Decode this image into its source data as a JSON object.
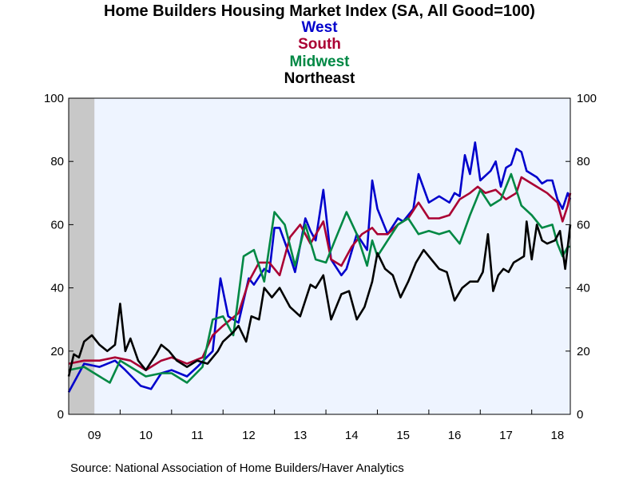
{
  "chart_data": {
    "type": "line",
    "title": "Home Builders Housing Market Index (SA, All Good=100)",
    "source": "Source:  National Association of Home Builders/Haver Analytics",
    "ylim": [
      0,
      100
    ],
    "y_ticks": [
      "0",
      "20",
      "40",
      "60",
      "80",
      "100"
    ],
    "x_range": [
      2009.0,
      2018.75
    ],
    "x_ticks": [
      {
        "label": "09",
        "x": 2009.5
      },
      {
        "label": "10",
        "x": 2010.5
      },
      {
        "label": "11",
        "x": 2011.5
      },
      {
        "label": "12",
        "x": 2012.5
      },
      {
        "label": "13",
        "x": 2013.5
      },
      {
        "label": "14",
        "x": 2014.5
      },
      {
        "label": "15",
        "x": 2015.5
      },
      {
        "label": "16",
        "x": 2016.5
      },
      {
        "label": "17",
        "x": 2017.5
      },
      {
        "label": "18",
        "x": 2018.5
      }
    ],
    "recession_shading": [
      2009.0,
      2009.5
    ],
    "grid": false,
    "legend_position": "top-center",
    "series": [
      {
        "name": "West",
        "color": "#0000cc",
        "points": [
          [
            2009.0,
            7
          ],
          [
            2009.3,
            16
          ],
          [
            2009.6,
            15
          ],
          [
            2009.9,
            17
          ],
          [
            2010.1,
            14
          ],
          [
            2010.4,
            9
          ],
          [
            2010.6,
            8
          ],
          [
            2010.8,
            13
          ],
          [
            2011.0,
            14
          ],
          [
            2011.3,
            12
          ],
          [
            2011.5,
            15
          ],
          [
            2011.8,
            20
          ],
          [
            2011.95,
            43
          ],
          [
            2012.1,
            31
          ],
          [
            2012.3,
            29
          ],
          [
            2012.5,
            43
          ],
          [
            2012.6,
            41
          ],
          [
            2012.8,
            46
          ],
          [
            2012.9,
            45
          ],
          [
            2013.0,
            59
          ],
          [
            2013.1,
            59
          ],
          [
            2013.3,
            50
          ],
          [
            2013.4,
            45
          ],
          [
            2013.6,
            62
          ],
          [
            2013.7,
            58
          ],
          [
            2013.8,
            55
          ],
          [
            2013.95,
            71
          ],
          [
            2014.1,
            49
          ],
          [
            2014.3,
            44
          ],
          [
            2014.4,
            46
          ],
          [
            2014.6,
            57
          ],
          [
            2014.8,
            52
          ],
          [
            2014.9,
            74
          ],
          [
            2015.0,
            65
          ],
          [
            2015.2,
            57
          ],
          [
            2015.4,
            62
          ],
          [
            2015.5,
            61
          ],
          [
            2015.7,
            65
          ],
          [
            2015.8,
            76
          ],
          [
            2016.0,
            67
          ],
          [
            2016.2,
            69
          ],
          [
            2016.4,
            67
          ],
          [
            2016.5,
            70
          ],
          [
            2016.6,
            69
          ],
          [
            2016.7,
            82
          ],
          [
            2016.8,
            76
          ],
          [
            2016.9,
            86
          ],
          [
            2017.0,
            74
          ],
          [
            2017.2,
            77
          ],
          [
            2017.3,
            80
          ],
          [
            2017.4,
            72
          ],
          [
            2017.5,
            78
          ],
          [
            2017.6,
            79
          ],
          [
            2017.7,
            84
          ],
          [
            2017.8,
            83
          ],
          [
            2017.9,
            77
          ],
          [
            2018.1,
            75
          ],
          [
            2018.2,
            73
          ],
          [
            2018.3,
            74
          ],
          [
            2018.4,
            74
          ],
          [
            2018.5,
            68
          ],
          [
            2018.6,
            65
          ],
          [
            2018.7,
            70
          ],
          [
            2018.75,
            68
          ]
        ]
      },
      {
        "name": "South",
        "color": "#aa0033",
        "points": [
          [
            2009.0,
            16
          ],
          [
            2009.3,
            17
          ],
          [
            2009.6,
            17
          ],
          [
            2009.9,
            18
          ],
          [
            2010.2,
            17
          ],
          [
            2010.5,
            14
          ],
          [
            2010.8,
            17
          ],
          [
            2011.0,
            18
          ],
          [
            2011.3,
            16
          ],
          [
            2011.6,
            18
          ],
          [
            2011.8,
            25
          ],
          [
            2012.0,
            28
          ],
          [
            2012.3,
            32
          ],
          [
            2012.5,
            42
          ],
          [
            2012.7,
            48
          ],
          [
            2012.9,
            48
          ],
          [
            2013.1,
            44
          ],
          [
            2013.3,
            56
          ],
          [
            2013.5,
            60
          ],
          [
            2013.7,
            54
          ],
          [
            2013.95,
            61
          ],
          [
            2014.1,
            49
          ],
          [
            2014.3,
            47
          ],
          [
            2014.5,
            53
          ],
          [
            2014.7,
            57
          ],
          [
            2014.9,
            59
          ],
          [
            2015.0,
            57
          ],
          [
            2015.2,
            57
          ],
          [
            2015.4,
            60
          ],
          [
            2015.6,
            62
          ],
          [
            2015.8,
            67
          ],
          [
            2016.0,
            62
          ],
          [
            2016.2,
            62
          ],
          [
            2016.4,
            63
          ],
          [
            2016.6,
            68
          ],
          [
            2016.8,
            70
          ],
          [
            2016.95,
            72
          ],
          [
            2017.1,
            70
          ],
          [
            2017.3,
            71
          ],
          [
            2017.5,
            68
          ],
          [
            2017.7,
            70
          ],
          [
            2017.8,
            75
          ],
          [
            2017.9,
            74
          ],
          [
            2018.1,
            72
          ],
          [
            2018.3,
            70
          ],
          [
            2018.5,
            67
          ],
          [
            2018.6,
            61
          ],
          [
            2018.7,
            66
          ],
          [
            2018.75,
            70
          ]
        ]
      },
      {
        "name": "Midwest",
        "color": "#008844",
        "points": [
          [
            2009.0,
            14
          ],
          [
            2009.3,
            15
          ],
          [
            2009.6,
            12
          ],
          [
            2009.8,
            10
          ],
          [
            2010.0,
            17
          ],
          [
            2010.2,
            15
          ],
          [
            2010.5,
            12
          ],
          [
            2010.8,
            13
          ],
          [
            2011.0,
            13
          ],
          [
            2011.3,
            10
          ],
          [
            2011.6,
            15
          ],
          [
            2011.8,
            30
          ],
          [
            2012.0,
            31
          ],
          [
            2012.2,
            25
          ],
          [
            2012.4,
            50
          ],
          [
            2012.6,
            52
          ],
          [
            2012.8,
            42
          ],
          [
            2013.0,
            64
          ],
          [
            2013.2,
            60
          ],
          [
            2013.4,
            47
          ],
          [
            2013.6,
            60
          ],
          [
            2013.8,
            49
          ],
          [
            2014.0,
            48
          ],
          [
            2014.2,
            56
          ],
          [
            2014.4,
            64
          ],
          [
            2014.6,
            57
          ],
          [
            2014.8,
            47
          ],
          [
            2014.9,
            55
          ],
          [
            2015.0,
            50
          ],
          [
            2015.2,
            55
          ],
          [
            2015.4,
            60
          ],
          [
            2015.6,
            62
          ],
          [
            2015.8,
            57
          ],
          [
            2016.0,
            58
          ],
          [
            2016.2,
            57
          ],
          [
            2016.4,
            58
          ],
          [
            2016.6,
            54
          ],
          [
            2016.8,
            63
          ],
          [
            2017.0,
            71
          ],
          [
            2017.2,
            66
          ],
          [
            2017.4,
            68
          ],
          [
            2017.6,
            76
          ],
          [
            2017.8,
            66
          ],
          [
            2018.0,
            63
          ],
          [
            2018.2,
            59
          ],
          [
            2018.4,
            60
          ],
          [
            2018.5,
            54
          ],
          [
            2018.6,
            50
          ],
          [
            2018.7,
            53
          ],
          [
            2018.75,
            53
          ]
        ]
      },
      {
        "name": "Northeast",
        "color": "#000000",
        "points": [
          [
            2009.0,
            12
          ],
          [
            2009.1,
            19
          ],
          [
            2009.2,
            18
          ],
          [
            2009.3,
            23
          ],
          [
            2009.45,
            25
          ],
          [
            2009.6,
            22
          ],
          [
            2009.75,
            20
          ],
          [
            2009.9,
            22
          ],
          [
            2010.0,
            35
          ],
          [
            2010.1,
            20
          ],
          [
            2010.2,
            24
          ],
          [
            2010.35,
            17
          ],
          [
            2010.5,
            14
          ],
          [
            2010.7,
            19
          ],
          [
            2010.8,
            22
          ],
          [
            2010.95,
            20
          ],
          [
            2011.1,
            17
          ],
          [
            2011.3,
            15
          ],
          [
            2011.5,
            17
          ],
          [
            2011.7,
            16
          ],
          [
            2011.9,
            20
          ],
          [
            2012.0,
            23
          ],
          [
            2012.2,
            26
          ],
          [
            2012.3,
            28
          ],
          [
            2012.45,
            23
          ],
          [
            2012.55,
            31
          ],
          [
            2012.7,
            30
          ],
          [
            2012.8,
            40
          ],
          [
            2012.95,
            37
          ],
          [
            2013.1,
            40
          ],
          [
            2013.3,
            34
          ],
          [
            2013.5,
            31
          ],
          [
            2013.7,
            41
          ],
          [
            2013.8,
            40
          ],
          [
            2013.95,
            44
          ],
          [
            2014.1,
            30
          ],
          [
            2014.3,
            38
          ],
          [
            2014.45,
            39
          ],
          [
            2014.6,
            30
          ],
          [
            2014.75,
            34
          ],
          [
            2014.9,
            42
          ],
          [
            2015.0,
            51
          ],
          [
            2015.15,
            46
          ],
          [
            2015.3,
            44
          ],
          [
            2015.45,
            37
          ],
          [
            2015.6,
            42
          ],
          [
            2015.75,
            48
          ],
          [
            2015.9,
            52
          ],
          [
            2016.05,
            49
          ],
          [
            2016.2,
            46
          ],
          [
            2016.35,
            45
          ],
          [
            2016.5,
            36
          ],
          [
            2016.65,
            40
          ],
          [
            2016.8,
            42
          ],
          [
            2016.95,
            42
          ],
          [
            2017.05,
            45
          ],
          [
            2017.15,
            57
          ],
          [
            2017.25,
            39
          ],
          [
            2017.35,
            44
          ],
          [
            2017.45,
            46
          ],
          [
            2017.55,
            45
          ],
          [
            2017.65,
            48
          ],
          [
            2017.75,
            49
          ],
          [
            2017.85,
            50
          ],
          [
            2017.9,
            61
          ],
          [
            2018.0,
            49
          ],
          [
            2018.1,
            60
          ],
          [
            2018.2,
            55
          ],
          [
            2018.3,
            54
          ],
          [
            2018.45,
            55
          ],
          [
            2018.55,
            58
          ],
          [
            2018.65,
            46
          ],
          [
            2018.75,
            60
          ]
        ]
      }
    ]
  }
}
